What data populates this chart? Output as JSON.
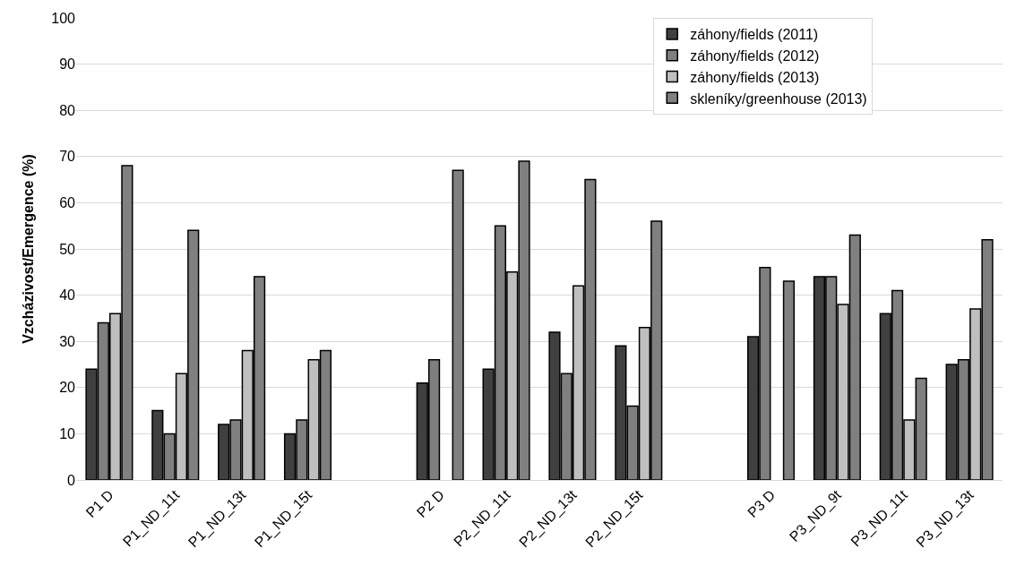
{
  "chart_data": {
    "type": "bar",
    "ylabel": "Vzcházivost/Emergence (%)",
    "categories": [
      "P1 D",
      "P1_ND_11t",
      "P1_ND_13t",
      "P1_ND_15t",
      null,
      "P2 D",
      "P2_ND_11t",
      "P2_ND_13t",
      "P2_ND_15t",
      null,
      "P3 D",
      "P3_ND_9t",
      "P3_ND_11t",
      "P3_ND_13t"
    ],
    "series": [
      {
        "name": "záhony/fields (2011)",
        "color": "#404040",
        "values": [
          24,
          15,
          12,
          10,
          null,
          21,
          24,
          32,
          29,
          null,
          31,
          44,
          36,
          25
        ]
      },
      {
        "name": "záhony/fields (2012)",
        "color": "#7f7f7f",
        "values": [
          34,
          10,
          13,
          13,
          null,
          26,
          55,
          23,
          16,
          null,
          46,
          44,
          41,
          26
        ]
      },
      {
        "name": "záhony/fields (2013)",
        "color": "#bfbfbf",
        "values": [
          36,
          23,
          28,
          26,
          null,
          null,
          45,
          42,
          33,
          null,
          null,
          38,
          13,
          37
        ]
      },
      {
        "name": "skleníky/greenhouse (2013)",
        "color": "#808080",
        "values": [
          68,
          54,
          44,
          28,
          null,
          67,
          69,
          65,
          56,
          null,
          43,
          53,
          22,
          52
        ]
      }
    ],
    "ylim": [
      0,
      100
    ],
    "yticks": [
      0,
      10,
      20,
      30,
      40,
      50,
      60,
      70,
      80,
      90,
      100
    ],
    "grid": "y",
    "legend": "top right"
  }
}
